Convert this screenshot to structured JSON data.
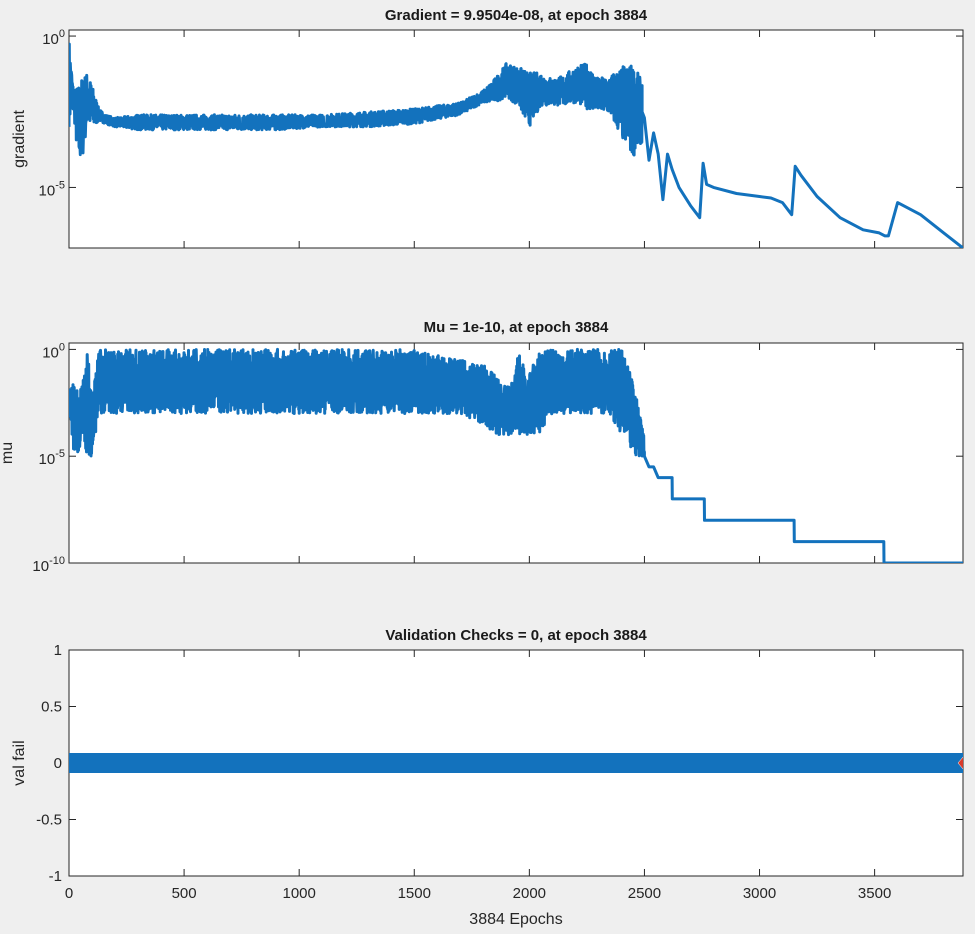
{
  "chart_data": [
    {
      "type": "line",
      "title": "Gradient = 9.9504e-08, at epoch 3884",
      "ylabel": "gradient",
      "xlabel": "",
      "xlim": [
        0,
        3884
      ],
      "yscale": "log",
      "ylim_log10": [
        -7.0,
        0.2
      ],
      "ytick_labels": [
        {
          "exp": 0,
          "label": "10",
          "sup": "0"
        },
        {
          "exp": -5,
          "label": "10",
          "sup": "-5"
        }
      ],
      "line_color": "#1372bd",
      "series": [
        {
          "name": "gradient",
          "envelopes": [
            {
              "x": [
                0,
                20,
                40,
                60,
                80,
                100,
                130,
                160,
                200,
                300,
                500,
                700,
                900,
                1100,
                1300,
                1500,
                1700,
                1800,
                1850,
                1900,
                1950,
                2000,
                2050,
                2100,
                2150,
                2200,
                2250,
                2300,
                2350,
                2400,
                2450,
                2490
              ],
              "lo": [
                -3.0,
                -2.5,
                -4.3,
                -4.0,
                -2.9,
                -3.1,
                -2.8,
                -2.9,
                -3.0,
                -3.1,
                -3.1,
                -3.1,
                -3.1,
                -3.0,
                -3.0,
                -2.9,
                -2.6,
                -2.2,
                -2.2,
                -2.0,
                -2.3,
                -3.0,
                -2.3,
                -2.3,
                -2.3,
                -2.2,
                -2.4,
                -2.5,
                -2.6,
                -3.4,
                -4.0,
                -3.5
              ],
              "hi": [
                0.0,
                -1.8,
                -1.6,
                -1.3,
                -1.2,
                -1.6,
                -2.4,
                -2.6,
                -2.7,
                -2.6,
                -2.6,
                -2.6,
                -2.6,
                -2.6,
                -2.5,
                -2.4,
                -2.2,
                -1.8,
                -1.4,
                -0.9,
                -1.0,
                -1.2,
                -1.2,
                -1.4,
                -1.3,
                -1.0,
                -0.9,
                -1.4,
                -1.3,
                -1.0,
                -0.9,
                -1.5
              ]
            }
          ],
          "x": [
            2490,
            2500,
            2520,
            2540,
            2560,
            2580,
            2600,
            2620,
            2650,
            2700,
            2740,
            2755,
            2770,
            2800,
            2900,
            3000,
            3050,
            3100,
            3130,
            3140,
            3155,
            3180,
            3250,
            3350,
            3450,
            3520,
            3545,
            3560,
            3600,
            3700,
            3800,
            3884
          ],
          "y": [
            -2.5,
            -2.7,
            -4.1,
            -3.2,
            -3.9,
            -5.4,
            -3.9,
            -4.4,
            -5.0,
            -5.6,
            -6.0,
            -4.2,
            -4.9,
            -5.0,
            -5.2,
            -5.3,
            -5.35,
            -5.5,
            -5.8,
            -5.9,
            -4.3,
            -4.6,
            -5.3,
            -6.0,
            -6.4,
            -6.5,
            -6.6,
            -6.6,
            -5.5,
            -5.9,
            -6.5,
            -7.0
          ]
        }
      ]
    },
    {
      "type": "line",
      "title": "Mu = 1e-10, at epoch 3884",
      "ylabel": "mu",
      "xlabel": "",
      "xlim": [
        0,
        3884
      ],
      "yscale": "log",
      "ylim_log10": [
        -10.0,
        0.3
      ],
      "ytick_labels": [
        {
          "exp": 0,
          "label": "10",
          "sup": "0"
        },
        {
          "exp": -5,
          "label": "10",
          "sup": "-5"
        },
        {
          "exp": -10,
          "label": "10",
          "sup": "-10"
        }
      ],
      "line_color": "#1372bd",
      "series": [
        {
          "name": "mu",
          "envelopes": [
            {
              "x": [
                0,
                20,
                40,
                60,
                80,
                100,
                130,
                160,
                200,
                300,
                500,
                700,
                900,
                1100,
                1300,
                1500,
                1700,
                1800,
                1850,
                1900,
                1930,
                1960,
                1990,
                2000,
                2050,
                2100,
                2150,
                2200,
                2250,
                2300,
                2350,
                2400,
                2450,
                2500
              ],
              "lo": [
                -2.5,
                -4.8,
                -5.0,
                -4.0,
                -5.0,
                -5.0,
                -3.0,
                -3.0,
                -3.0,
                -3.0,
                -3.0,
                -3.0,
                -3.0,
                -3.0,
                -3.0,
                -3.0,
                -3.0,
                -3.5,
                -4.0,
                -4.0,
                -4.0,
                -4.0,
                -4.0,
                -4.0,
                -4.0,
                -3.0,
                -3.0,
                -3.0,
                -3.0,
                -3.0,
                -3.0,
                -4.0,
                -5.0,
                -5.0
              ],
              "hi": [
                -2.0,
                -1.5,
                -2.0,
                -1.5,
                0.0,
                -2.0,
                0.0,
                0.0,
                0.0,
                0.0,
                0.0,
                0.0,
                0.0,
                0.0,
                0.0,
                0.0,
                -0.5,
                -0.7,
                -1.2,
                -1.8,
                -1.5,
                0.3,
                -2.0,
                -1.0,
                0.0,
                0.0,
                0.0,
                0.0,
                0.0,
                0.0,
                0.0,
                0.0,
                -1.5,
                -4.0
              ]
            }
          ],
          "x": [
            2500,
            2520,
            2540,
            2560,
            2620,
            2621,
            2760,
            2761,
            3150,
            3151,
            3540,
            3541,
            3884
          ],
          "y": [
            -5.0,
            -5.5,
            -5.5,
            -6.0,
            -6.0,
            -7.0,
            -7.0,
            -8.0,
            -8.0,
            -9.0,
            -9.0,
            -10.0,
            -10.0
          ]
        }
      ]
    },
    {
      "type": "scatter",
      "title": "Validation Checks = 0, at epoch 3884",
      "ylabel": "val fail",
      "xlabel": "3884 Epochs",
      "xlim": [
        0,
        3884
      ],
      "ylim": [
        -1,
        1
      ],
      "yticks": [
        1,
        0.5,
        0,
        -0.5,
        -1
      ],
      "ytick_labels": [
        "1",
        "0.5",
        "0",
        "-0.5",
        "-1"
      ],
      "xticks": [
        0,
        500,
        1000,
        1500,
        2000,
        2500,
        3000,
        3500
      ],
      "xtick_labels": [
        "0",
        "500",
        "1000",
        "1500",
        "2000",
        "2500",
        "3000",
        "3500"
      ],
      "series": [
        {
          "name": "val fail",
          "x_range": [
            0,
            3884
          ],
          "value": 0,
          "color": "#1372bd"
        },
        {
          "name": "current epoch",
          "x": [
            3884
          ],
          "y": [
            0
          ],
          "color": "#d93a2b"
        }
      ]
    }
  ]
}
